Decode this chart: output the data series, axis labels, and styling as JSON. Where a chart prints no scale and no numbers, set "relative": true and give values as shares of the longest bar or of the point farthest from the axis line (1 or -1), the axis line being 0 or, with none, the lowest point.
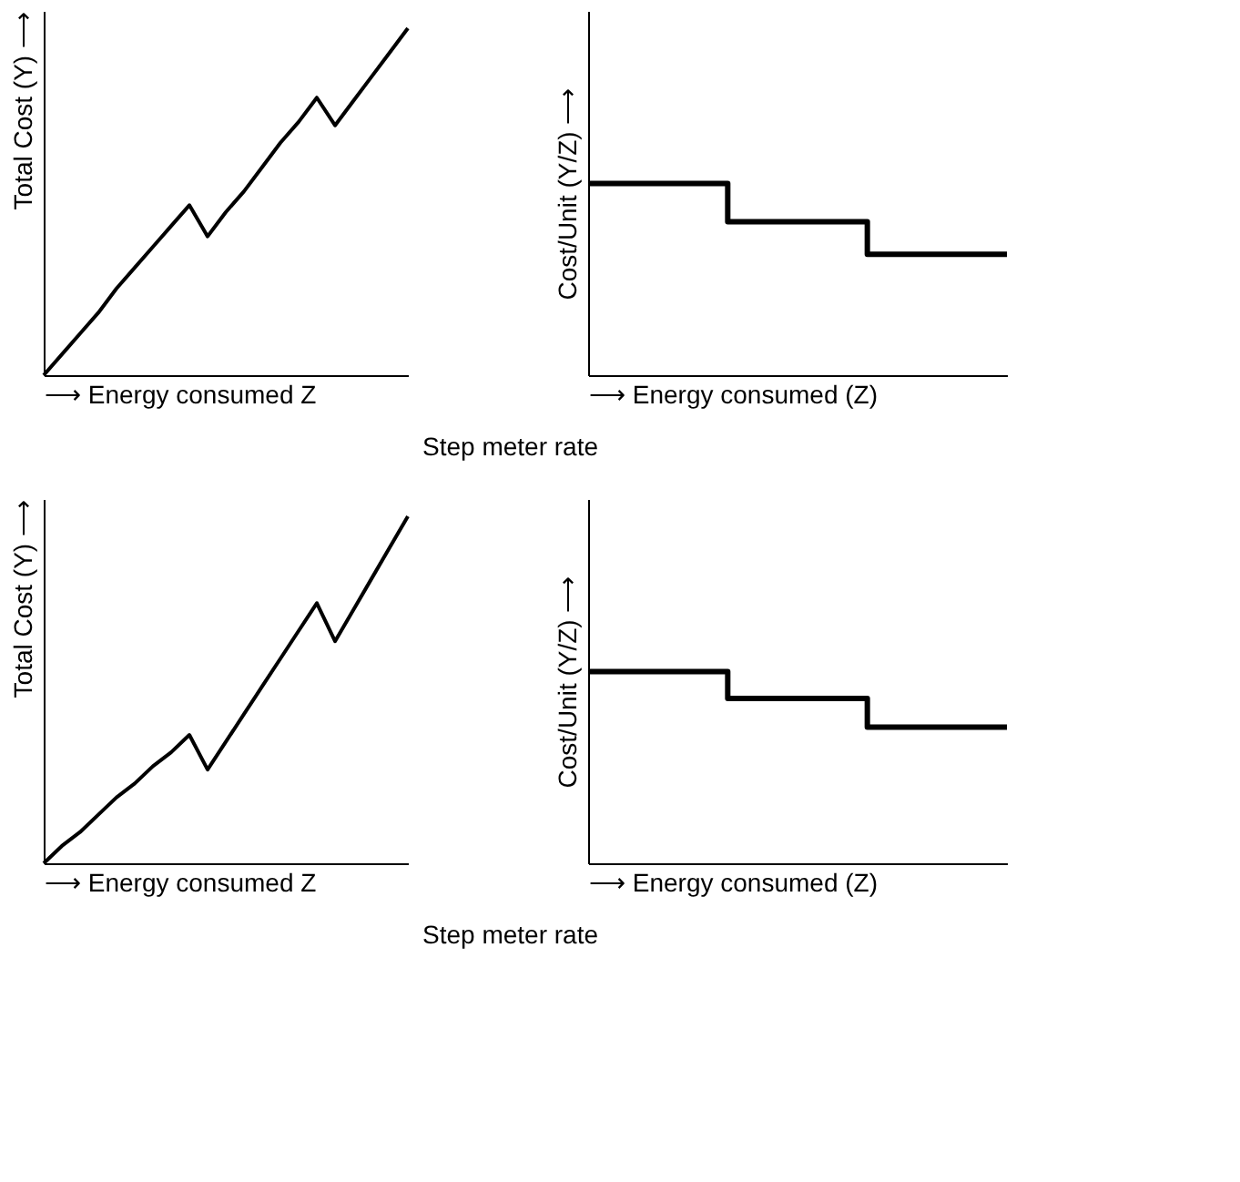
{
  "chart_data": [
    {
      "type": "line",
      "relative": true,
      "ylabel": "Total Cost (Y) ⟶",
      "xlabel": "⟶ Energy consumed Z",
      "tick_labels": false,
      "grid": false,
      "categories": [
        null,
        null,
        null,
        null,
        null,
        null,
        null,
        null,
        null,
        null,
        null,
        null,
        null,
        null,
        null,
        null,
        null,
        null,
        null,
        null,
        null
      ],
      "series": [
        {
          "color": "#000000",
          "values": [
            0,
            0.06,
            0.12,
            0.18,
            0.25,
            0.31,
            0.37,
            0.43,
            0.49,
            0.4,
            0.47,
            0.53,
            0.6,
            0.67,
            0.73,
            0.8,
            0.72,
            0.79,
            0.86,
            0.93,
            1.0
          ]
        }
      ]
    },
    {
      "type": "step",
      "relative": true,
      "ylabel": "Cost/Unit (Y/Z) ⟶",
      "xlabel": "⟶ Energy consumed (Z)",
      "tick_labels": false,
      "grid": false,
      "annotations": [
        "Step meter rate"
      ],
      "categories": [
        null,
        null,
        null,
        null
      ],
      "series": [
        {
          "color": "#000000",
          "values": [
            1.0,
            0.8,
            0.63,
            0.63
          ]
        }
      ]
    },
    {
      "type": "line",
      "relative": true,
      "ylabel": "Total Cost (Y) ⟶",
      "xlabel": "⟶ Energy consumed Z",
      "tick_labels": false,
      "grid": false,
      "categories": [
        null,
        null,
        null,
        null,
        null,
        null,
        null,
        null,
        null,
        null,
        null,
        null,
        null,
        null,
        null,
        null,
        null,
        null,
        null,
        null,
        null
      ],
      "series": [
        {
          "color": "#000000",
          "values": [
            0,
            0.05,
            0.09,
            0.14,
            0.19,
            0.23,
            0.28,
            0.32,
            0.37,
            0.27,
            0.35,
            0.43,
            0.51,
            0.59,
            0.67,
            0.75,
            0.64,
            0.73,
            0.82,
            0.91,
            1.0
          ]
        }
      ]
    },
    {
      "type": "step",
      "relative": true,
      "ylabel": "Cost/Unit (Y/Z) ⟶",
      "xlabel": "⟶ Energy consumed (Z)",
      "tick_labels": false,
      "grid": false,
      "annotations": [
        "Step meter rate"
      ],
      "categories": [
        null,
        null,
        null,
        null
      ],
      "series": [
        {
          "color": "#000000",
          "values": [
            1.0,
            0.86,
            0.71,
            0.71
          ]
        }
      ]
    }
  ]
}
